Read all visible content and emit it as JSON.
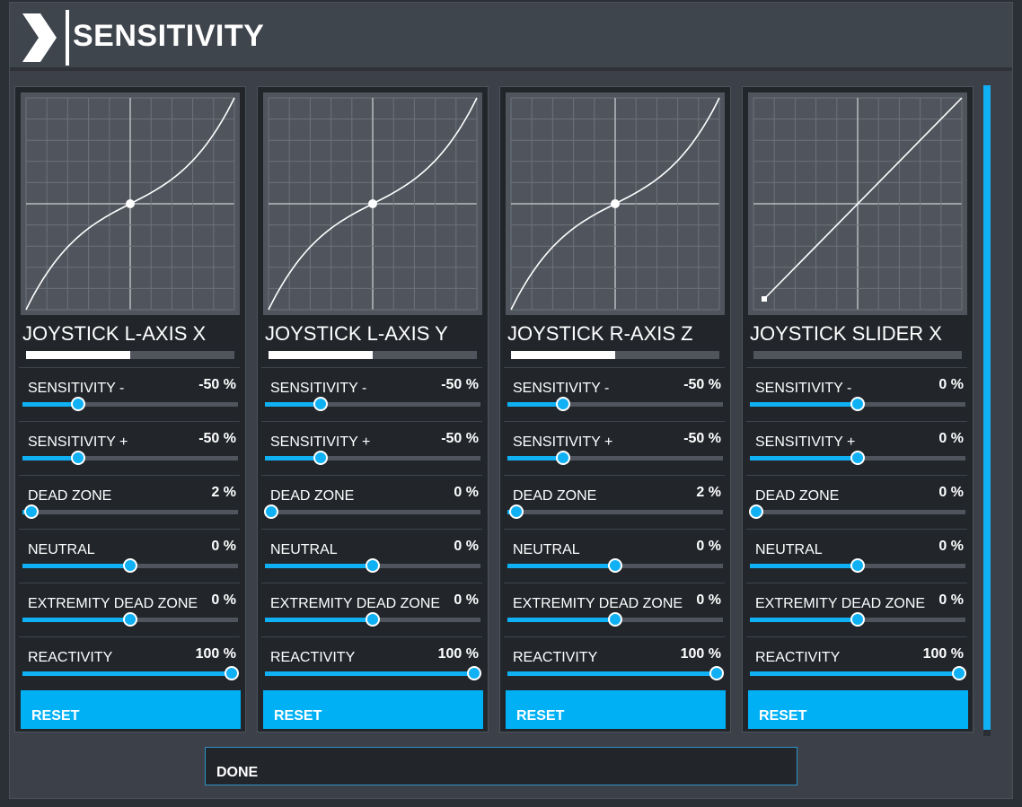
{
  "header": {
    "title": "SENSITIVITY",
    "icon": "chevron-right-icon"
  },
  "colors": {
    "accent": "#10b1f4",
    "button": "#00b0f5",
    "panel": "#22262b",
    "graph": "#50555d"
  },
  "panels": [
    {
      "name": "JOYSTICK L-AXIS X",
      "axis_bar_fraction": 0.5,
      "curve": "cubic",
      "settings": [
        {
          "label": "SENSITIVITY -",
          "value": "-50 %",
          "fraction": 0.26
        },
        {
          "label": "SENSITIVITY +",
          "value": "-50 %",
          "fraction": 0.26
        },
        {
          "label": "DEAD ZONE",
          "value": "2 %",
          "fraction": 0.04
        },
        {
          "label": "NEUTRAL",
          "value": "0 %",
          "fraction": 0.5
        },
        {
          "label": "EXTREMITY DEAD ZONE",
          "value": "0 %",
          "fraction": 0.5
        },
        {
          "label": "REACTIVITY",
          "value": "100 %",
          "fraction": 0.97
        }
      ],
      "reset_label": "RESET"
    },
    {
      "name": "JOYSTICK L-AXIS Y",
      "axis_bar_fraction": 0.5,
      "curve": "cubic",
      "settings": [
        {
          "label": "SENSITIVITY -",
          "value": "-50 %",
          "fraction": 0.26
        },
        {
          "label": "SENSITIVITY +",
          "value": "-50 %",
          "fraction": 0.26
        },
        {
          "label": "DEAD ZONE",
          "value": "0 %",
          "fraction": 0.03
        },
        {
          "label": "NEUTRAL",
          "value": "0 %",
          "fraction": 0.5
        },
        {
          "label": "EXTREMITY DEAD ZONE",
          "value": "0 %",
          "fraction": 0.5
        },
        {
          "label": "REACTIVITY",
          "value": "100 %",
          "fraction": 0.97
        }
      ],
      "reset_label": "RESET"
    },
    {
      "name": "JOYSTICK R-AXIS Z",
      "axis_bar_fraction": 0.5,
      "curve": "cubic",
      "settings": [
        {
          "label": "SENSITIVITY -",
          "value": "-50 %",
          "fraction": 0.26
        },
        {
          "label": "SENSITIVITY +",
          "value": "-50 %",
          "fraction": 0.26
        },
        {
          "label": "DEAD ZONE",
          "value": "2 %",
          "fraction": 0.04
        },
        {
          "label": "NEUTRAL",
          "value": "0 %",
          "fraction": 0.5
        },
        {
          "label": "EXTREMITY DEAD ZONE",
          "value": "0 %",
          "fraction": 0.5
        },
        {
          "label": "REACTIVITY",
          "value": "100 %",
          "fraction": 0.97
        }
      ],
      "reset_label": "RESET"
    },
    {
      "name": "JOYSTICK SLIDER X",
      "axis_bar_fraction": 0,
      "curve": "linear",
      "settings": [
        {
          "label": "SENSITIVITY -",
          "value": "0 %",
          "fraction": 0.5
        },
        {
          "label": "SENSITIVITY +",
          "value": "0 %",
          "fraction": 0.5
        },
        {
          "label": "DEAD ZONE",
          "value": "0 %",
          "fraction": 0.03
        },
        {
          "label": "NEUTRAL",
          "value": "0 %",
          "fraction": 0.5
        },
        {
          "label": "EXTREMITY DEAD ZONE",
          "value": "0 %",
          "fraction": 0.5
        },
        {
          "label": "REACTIVITY",
          "value": "100 %",
          "fraction": 0.97
        }
      ],
      "reset_label": "RESET"
    }
  ],
  "done_label": "DONE"
}
